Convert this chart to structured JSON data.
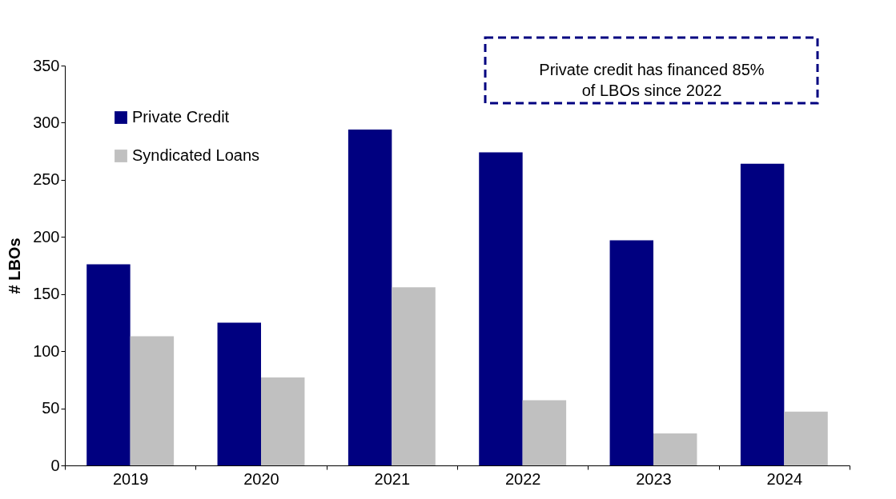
{
  "chart_data": {
    "type": "bar",
    "ylabel": "# LBOs",
    "categories": [
      "2019",
      "2020",
      "2021",
      "2022",
      "2023",
      "2024"
    ],
    "series": [
      {
        "name": "Private Credit",
        "color": "#000080",
        "values": [
          176,
          125,
          294,
          274,
          197,
          264
        ]
      },
      {
        "name": "Syndicated Loans",
        "color": "#c0c0c0",
        "values": [
          113,
          77,
          156,
          57,
          28,
          47
        ]
      }
    ],
    "ylim": [
      0,
      350
    ],
    "yticks": [
      0,
      50,
      100,
      150,
      200,
      250,
      300,
      350
    ],
    "grid": false,
    "legend": "top left",
    "annotations": [
      "Private credit has financed 85%\nof LBOs since 2022"
    ]
  }
}
